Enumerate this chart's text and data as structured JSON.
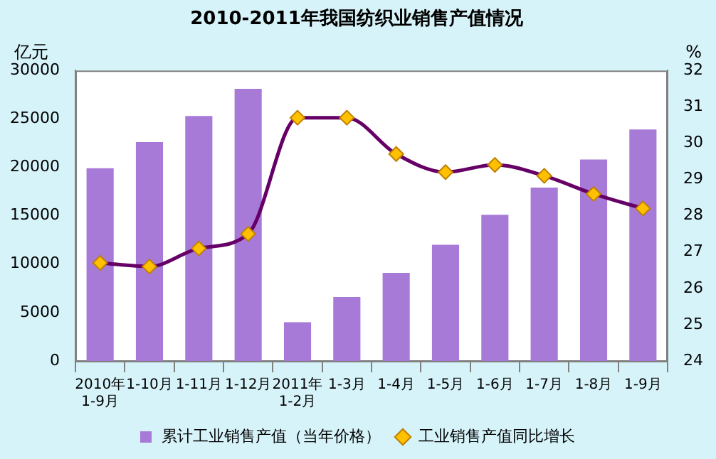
{
  "chart_data": {
    "type": "bar",
    "title": "2010-2011年我国纺织业销售产值情况",
    "categories": [
      "2010年\n1-9月",
      "1-10月",
      "1-11月",
      "1-12月",
      "2011年\n1-2月",
      "1-3月",
      "1-4月",
      "1-5月",
      "1-6月",
      "1-7月",
      "1-8月",
      "1-9月"
    ],
    "ylabel": "亿元",
    "y2label": "%",
    "series": [
      {
        "name": "累计工业销售产值（当年价格）",
        "color": "#a77ad8",
        "values": [
          19900,
          22600,
          25300,
          28100,
          4000,
          6600,
          9100,
          12000,
          15100,
          17900,
          20800,
          23900
        ]
      },
      {
        "name": "工业销售产值同比增长",
        "type": "line",
        "axis": "y2",
        "color": "#660066",
        "values": [
          26.7,
          26.6,
          27.1,
          27.5,
          30.7,
          30.7,
          29.7,
          29.2,
          29.4,
          29.1,
          28.6,
          28.2
        ]
      }
    ],
    "ylim": [
      0,
      30000
    ],
    "yticks": [
      0,
      5000,
      10000,
      15000,
      20000,
      25000,
      30000
    ],
    "y2lim": [
      24,
      32
    ],
    "y2ticks": [
      24,
      25,
      26,
      27,
      28,
      29,
      30,
      31,
      32
    ],
    "marker": "diamond",
    "grid": false,
    "legend": "bottom"
  }
}
